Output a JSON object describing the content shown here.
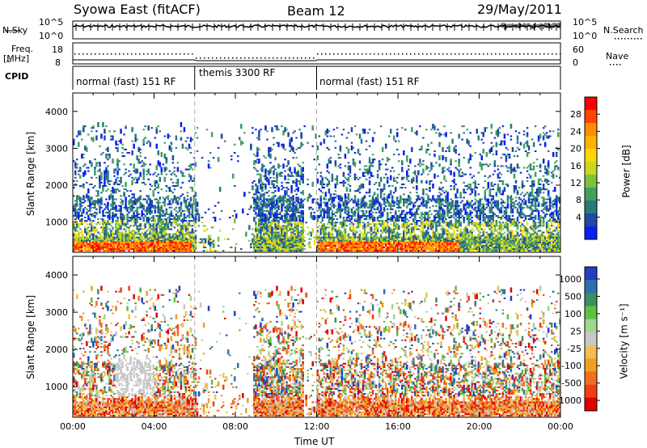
{
  "header": {
    "station": "Syowa East (fitACF)",
    "beam": "Beam 12",
    "date": "29/May/2011"
  },
  "top_panels": {
    "nsky_label": "N.Sky",
    "nsky_ticks": [
      "10^5",
      "10^0"
    ],
    "nsearch_label": "N.Search",
    "nsearch_ticks": [
      "10^5",
      "10^0"
    ],
    "freq_label": "Freq.",
    "freq_unit": "[MHz]",
    "freq_ticks": [
      "18",
      "8"
    ],
    "nave_label": "Nave",
    "nave_ticks": [
      "60",
      "0"
    ],
    "cpid_label": "CPID"
  },
  "modes": [
    {
      "label": "normal (fast) 151 RF",
      "start_hour": 0,
      "end_hour": 6
    },
    {
      "label": "themis 3300 RF",
      "start_hour": 6,
      "end_hour": 12
    },
    {
      "label": "normal (fast) 151 RF",
      "start_hour": 12,
      "end_hour": 24
    }
  ],
  "colorbars": {
    "power": {
      "label": "Power [dB]",
      "ticks": [
        "28",
        "24",
        "20",
        "16",
        "12",
        "8",
        "4"
      ],
      "colors": [
        "#ff0000",
        "#ff4500",
        "#ff8c00",
        "#ffb000",
        "#ffd700",
        "#c8d820",
        "#7cc040",
        "#40a060",
        "#2a7a7a",
        "#1e4aa0",
        "#0a1ef0"
      ]
    },
    "velocity": {
      "label": "Velocity [m s⁻¹]",
      "ticks": [
        "1000",
        "500",
        "100",
        "25",
        "-25",
        "-100",
        "-500",
        "-1000"
      ],
      "colors": [
        "#2040c0",
        "#3070b0",
        "#3a9060",
        "#60c040",
        "#a0d890",
        "#c8c8c8",
        "#f0c050",
        "#f0a020",
        "#f07020",
        "#f04010",
        "#e00000"
      ]
    }
  },
  "chart_data": [
    {
      "type": "heatmap",
      "title": "Power",
      "ylabel": "Slant Range [km]",
      "ylim": [
        180,
        4500
      ],
      "yticks": [
        "4000",
        "3000",
        "2000",
        "1000"
      ],
      "xlabel": "",
      "xlim": [
        0,
        24
      ],
      "xticks": [
        "00:00",
        "04:00",
        "08:00",
        "12:00",
        "16:00",
        "20:00",
        "00:00"
      ],
      "colorbar_range_db": [
        0,
        30
      ]
    },
    {
      "type": "heatmap",
      "title": "Velocity",
      "ylabel": "Slant Range [km]",
      "ylim": [
        180,
        4500
      ],
      "yticks": [
        "4000",
        "3000",
        "2000",
        "1000"
      ],
      "xlabel": "Time UT",
      "xlim": [
        0,
        24
      ],
      "xticks": [
        "00:00",
        "04:00",
        "08:00",
        "12:00",
        "16:00",
        "20:00",
        "00:00"
      ],
      "colorbar_range": [
        -1000,
        1000
      ]
    }
  ]
}
